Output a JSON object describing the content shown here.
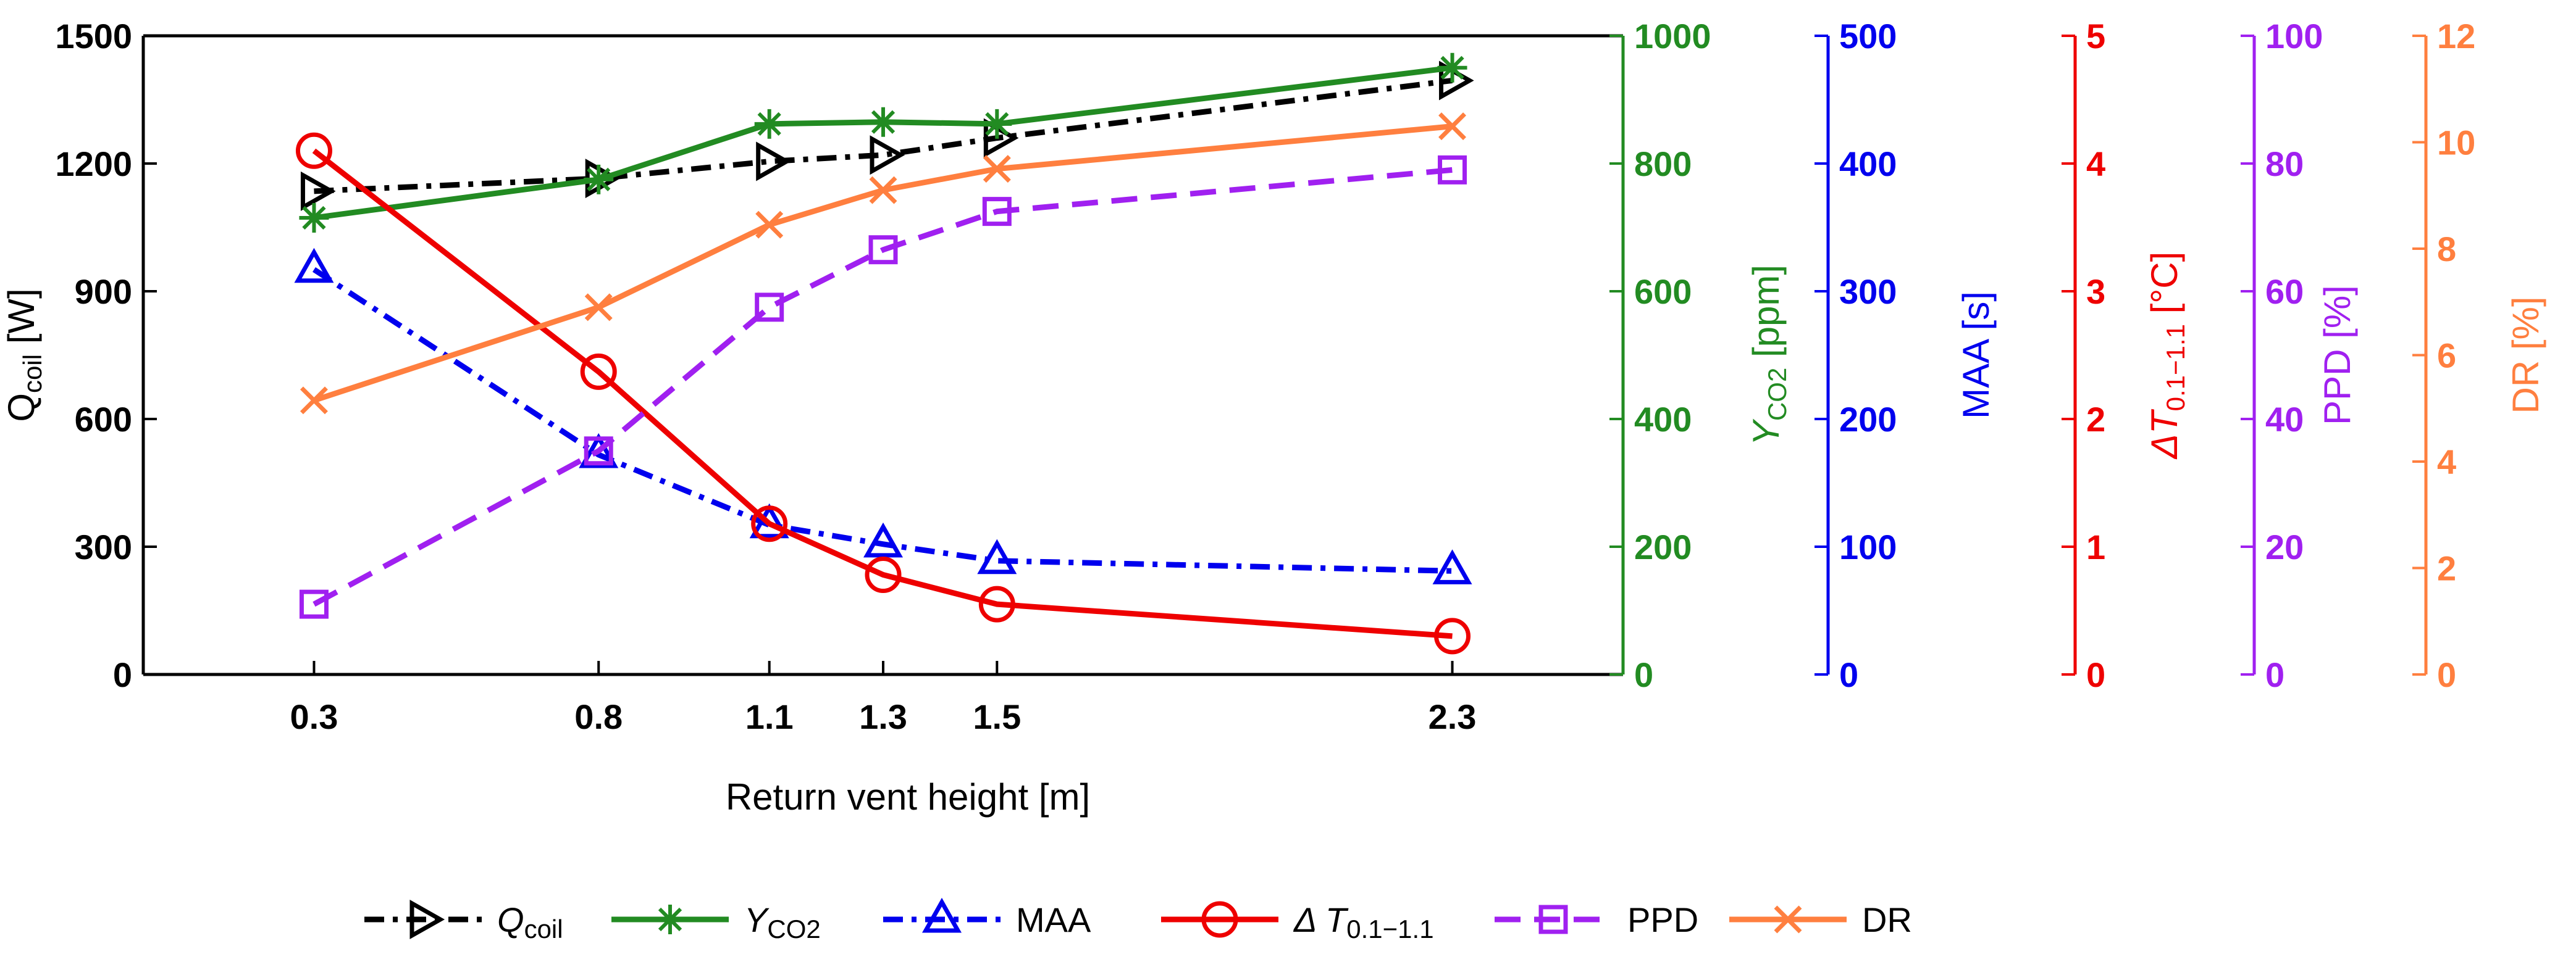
{
  "chart_data": {
    "type": "line",
    "xlabel": "Return vent height [m]",
    "x": [
      0.3,
      0.8,
      1.1,
      1.3,
      1.5,
      2.3
    ],
    "x_tick_labels": [
      "0.3",
      "0.8",
      "1.1",
      "1.3",
      "1.5",
      "2.3"
    ],
    "xlim": [
      0,
      2.6
    ],
    "grid": false,
    "legend_position": "bottom",
    "axes": [
      {
        "id": "qcoil",
        "title_main": "Q",
        "title_sub": "coil",
        "title_suffix": " [W]",
        "color": "#000000",
        "ylim": [
          0,
          1500
        ],
        "ticks": [
          0,
          300,
          600,
          900,
          1200,
          1500
        ],
        "tick_labels": [
          "0",
          "300",
          "600",
          "900",
          "1200",
          "1500"
        ]
      },
      {
        "id": "yco2",
        "title_main": "Y",
        "title_sub": "CO2",
        "title_suffix": " [ppm]",
        "color": "#228b22",
        "ylim": [
          0,
          1000
        ],
        "ticks": [
          0,
          200,
          400,
          600,
          800,
          1000
        ],
        "tick_labels": [
          "0",
          "200",
          "400",
          "600",
          "800",
          "1000"
        ]
      },
      {
        "id": "maa",
        "title_main": "MAA [s]",
        "title_sub": "",
        "title_suffix": "",
        "color": "#0000ee",
        "ylim": [
          0,
          500
        ],
        "ticks": [
          0,
          100,
          200,
          300,
          400,
          500
        ],
        "tick_labels": [
          "0",
          "100",
          "200",
          "300",
          "400",
          "500"
        ]
      },
      {
        "id": "dt",
        "title_main": "ΔT",
        "title_sub": "0.1−1.1",
        "title_suffix": " [°C]",
        "color": "#ee0000",
        "ylim": [
          0,
          5
        ],
        "ticks": [
          0,
          1,
          2,
          3,
          4,
          5
        ],
        "tick_labels": [
          "0",
          "1",
          "2",
          "3",
          "4",
          "5"
        ]
      },
      {
        "id": "ppd",
        "title_main": "PPD [%]",
        "title_sub": "",
        "title_suffix": "",
        "color": "#a020f0",
        "ylim": [
          0,
          100
        ],
        "ticks": [
          0,
          20,
          40,
          60,
          80,
          100
        ],
        "tick_labels": [
          "0",
          "20",
          "40",
          "60",
          "80",
          "100"
        ]
      },
      {
        "id": "dr",
        "title_main": "DR [%]",
        "title_sub": "",
        "title_suffix": "",
        "color": "#ff7f3f",
        "ylim": [
          0,
          12
        ],
        "ticks": [
          0,
          2,
          4,
          6,
          8,
          10,
          12
        ],
        "tick_labels": [
          "0",
          "2",
          "4",
          "6",
          "8",
          "10",
          "12"
        ]
      }
    ],
    "series": [
      {
        "id": "qcoil",
        "legend_main": "Q",
        "legend_sub": "coil",
        "axis": "qcoil",
        "color": "#000000",
        "dash": "dashdot",
        "marker": "triangle-right",
        "values": [
          1135,
          1165,
          1205,
          1220,
          1260,
          1395
        ]
      },
      {
        "id": "yco2",
        "legend_main": "Y",
        "legend_sub": "CO2",
        "axis": "yco2",
        "color": "#228b22",
        "dash": "solid",
        "marker": "asterisk",
        "values": [
          715,
          775,
          862,
          865,
          862,
          950
        ]
      },
      {
        "id": "maa",
        "legend_main": "MAA",
        "legend_sub": "",
        "axis": "maa",
        "color": "#0000ee",
        "dash": "dashdot",
        "marker": "triangle-up",
        "values": [
          317,
          172,
          117,
          102,
          89,
          81
        ]
      },
      {
        "id": "dt",
        "legend_main": "Δ T",
        "legend_sub": "0.1−1.1",
        "axis": "dt",
        "color": "#ee0000",
        "dash": "solid",
        "marker": "circle",
        "values": [
          4.1,
          2.37,
          1.18,
          0.78,
          0.55,
          0.3
        ]
      },
      {
        "id": "ppd",
        "legend_main": "PPD",
        "legend_sub": "",
        "axis": "ppd",
        "color": "#a020f0",
        "dash": "dashed",
        "marker": "square",
        "values": [
          11,
          35,
          57.5,
          66.5,
          72.5,
          79
        ]
      },
      {
        "id": "dr",
        "legend_main": "DR",
        "legend_sub": "",
        "axis": "dr",
        "color": "#ff7f3f",
        "dash": "solid",
        "marker": "x",
        "values": [
          5.15,
          6.9,
          8.45,
          9.1,
          9.5,
          10.3
        ]
      }
    ]
  }
}
